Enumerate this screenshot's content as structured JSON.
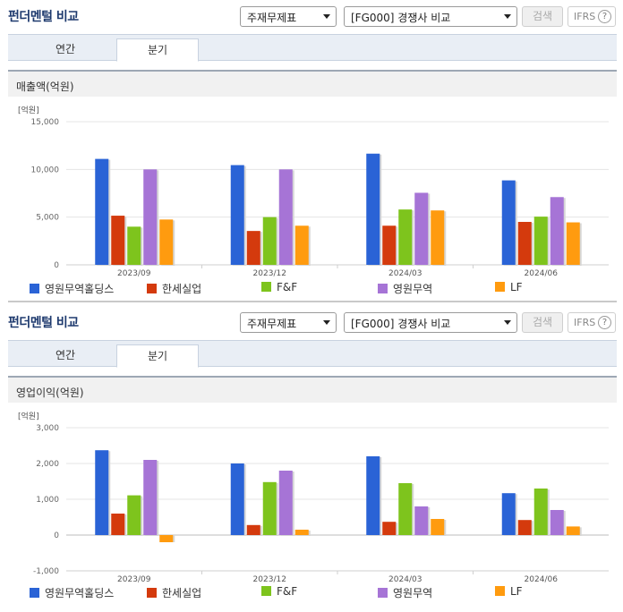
{
  "panels": [
    {
      "title": "펀더멘털 비교",
      "select_type": "주재무제표",
      "select_compare": "[FG000] 경쟁사 비교",
      "search_label": "검색",
      "ifrs_label": "IFRS",
      "help_label": "?",
      "tabs": [
        "연간",
        "분기"
      ],
      "active_tab": 1,
      "section_title": "매출액(억원)"
    },
    {
      "title": "펀더멘털 비교",
      "select_type": "주재무제표",
      "select_compare": "[FG000] 경쟁사 비교",
      "search_label": "검색",
      "ifrs_label": "IFRS",
      "help_label": "?",
      "tabs": [
        "연간",
        "분기"
      ],
      "active_tab": 1,
      "section_title": "영업이익(억원)"
    }
  ],
  "colors": {
    "영원무역홀딩스": "#2a63d6",
    "한세실업": "#d43a0d",
    "F&F": "#7ec41d",
    "영원무역": "#a674d6",
    "LF": "#ff9b0f"
  },
  "chart_data": [
    {
      "type": "bar",
      "unit_label": "[억원]",
      "categories": [
        "2023/09",
        "2023/12",
        "2024/03",
        "2024/06"
      ],
      "ylim": [
        0,
        15000
      ],
      "yticks": [
        0,
        5000,
        10000,
        15000
      ],
      "ytick_labels": [
        "0",
        "5,000",
        "10,000",
        "15,000"
      ],
      "grid": true,
      "legend_position": "bottom",
      "series": [
        {
          "name": "영원무역홀딩스",
          "values": [
            11100,
            10450,
            11650,
            8850
          ]
        },
        {
          "name": "한세실업",
          "values": [
            5150,
            3550,
            4100,
            4500
          ]
        },
        {
          "name": "F&F",
          "values": [
            4000,
            5000,
            5800,
            5050
          ]
        },
        {
          "name": "영원무역",
          "values": [
            10000,
            10000,
            7550,
            7100
          ]
        },
        {
          "name": "LF",
          "values": [
            4750,
            4100,
            5700,
            4450
          ]
        }
      ]
    },
    {
      "type": "bar",
      "unit_label": "[억원]",
      "categories": [
        "2023/09",
        "2023/12",
        "2024/03",
        "2024/06"
      ],
      "ylim": [
        -1000,
        3000
      ],
      "yticks": [
        -1000,
        0,
        1000,
        2000,
        3000
      ],
      "ytick_labels": [
        "-1,000",
        "0",
        "1,000",
        "2,000",
        "3,000"
      ],
      "grid": true,
      "legend_position": "bottom",
      "series": [
        {
          "name": "영원무역홀딩스",
          "values": [
            2370,
            2000,
            2200,
            1170
          ]
        },
        {
          "name": "한세실업",
          "values": [
            600,
            280,
            370,
            420
          ]
        },
        {
          "name": "F&F",
          "values": [
            1110,
            1480,
            1450,
            1300
          ]
        },
        {
          "name": "영원무역",
          "values": [
            2100,
            1800,
            800,
            700
          ]
        },
        {
          "name": "LF",
          "values": [
            -200,
            150,
            450,
            240
          ]
        }
      ]
    }
  ]
}
